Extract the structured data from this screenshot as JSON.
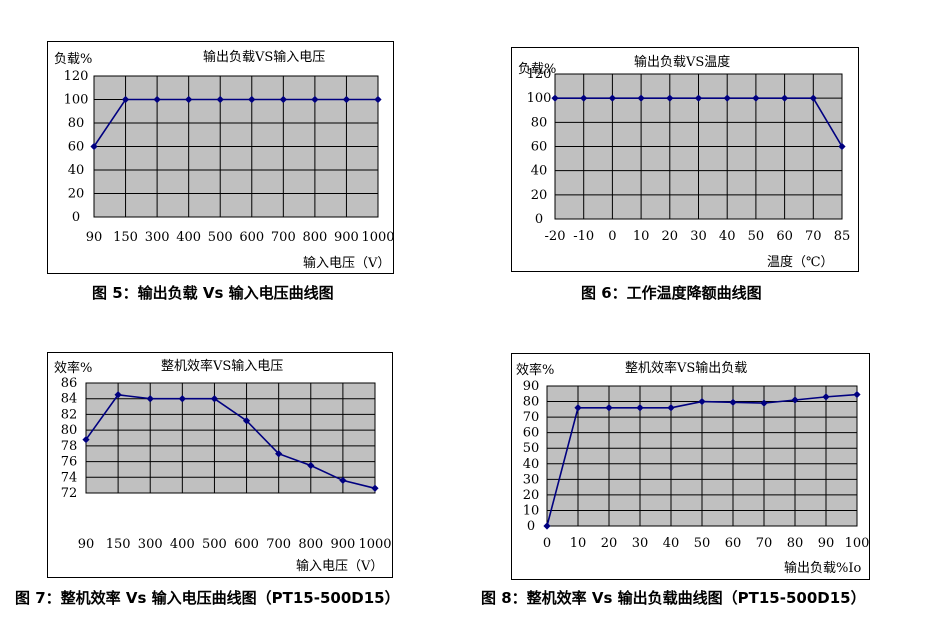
{
  "chart_data": [
    {
      "type": "line",
      "title": "输出负载VS输入电压",
      "ylabel": "负载%",
      "xlabel": "输入电压（V）",
      "categories": [
        "90",
        "150",
        "300",
        "400",
        "500",
        "600",
        "700",
        "800",
        "900",
        "1000"
      ],
      "values": [
        60,
        100,
        100,
        100,
        100,
        100,
        100,
        100,
        100,
        100
      ],
      "ylim": [
        0,
        120
      ],
      "yticks": [
        0,
        20,
        40,
        60,
        80,
        100,
        120
      ],
      "grid": true,
      "line_color": "#000080",
      "plot_bg": "#c0c0c0",
      "caption": "图 5：输出负载 Vs 输入电压曲线图"
    },
    {
      "type": "line",
      "title": "输出负载VS温度",
      "ylabel": "负载%",
      "xlabel": "温度（℃）",
      "categories": [
        "-20",
        "-10",
        "0",
        "10",
        "20",
        "30",
        "40",
        "50",
        "60",
        "70",
        "85"
      ],
      "values": [
        100,
        100,
        100,
        100,
        100,
        100,
        100,
        100,
        100,
        100,
        60
      ],
      "ylim": [
        0,
        120
      ],
      "yticks": [
        0,
        20,
        40,
        60,
        80,
        100,
        120
      ],
      "grid": true,
      "line_color": "#000080",
      "plot_bg": "#c0c0c0",
      "caption": "图 6：工作温度降额曲线图"
    },
    {
      "type": "line",
      "title": "整机效率VS输入电压",
      "ylabel": "效率%",
      "xlabel": "输入电压（V）",
      "categories": [
        "90",
        "150",
        "300",
        "400",
        "500",
        "600",
        "700",
        "800",
        "900",
        "1000"
      ],
      "values": [
        78.8,
        84.5,
        84,
        84,
        84,
        81.2,
        77,
        75.5,
        73.6,
        72.6
      ],
      "ylim": [
        72,
        86
      ],
      "yticks": [
        72,
        74,
        76,
        78,
        80,
        82,
        84,
        86
      ],
      "grid": true,
      "line_color": "#000080",
      "plot_bg": "#c0c0c0",
      "caption": "图 7：整机效率 Vs 输入电压曲线图（PT15-500D15）"
    },
    {
      "type": "line",
      "title": "整机效率VS输出负载",
      "ylabel": "效率%",
      "xlabel": "输出负载%Io",
      "categories": [
        "0",
        "10",
        "20",
        "30",
        "40",
        "50",
        "60",
        "70",
        "80",
        "90",
        "100"
      ],
      "values": [
        0,
        76,
        76,
        76,
        76,
        80,
        79.5,
        79,
        81,
        83,
        84.5
      ],
      "ylim": [
        0,
        90
      ],
      "yticks": [
        0,
        10,
        20,
        30,
        40,
        50,
        60,
        70,
        80,
        90
      ],
      "grid": true,
      "line_color": "#000080",
      "plot_bg": "#c0c0c0",
      "caption": "图 8：整机效率 Vs 输出负载曲线图（PT15-500D15）"
    }
  ]
}
